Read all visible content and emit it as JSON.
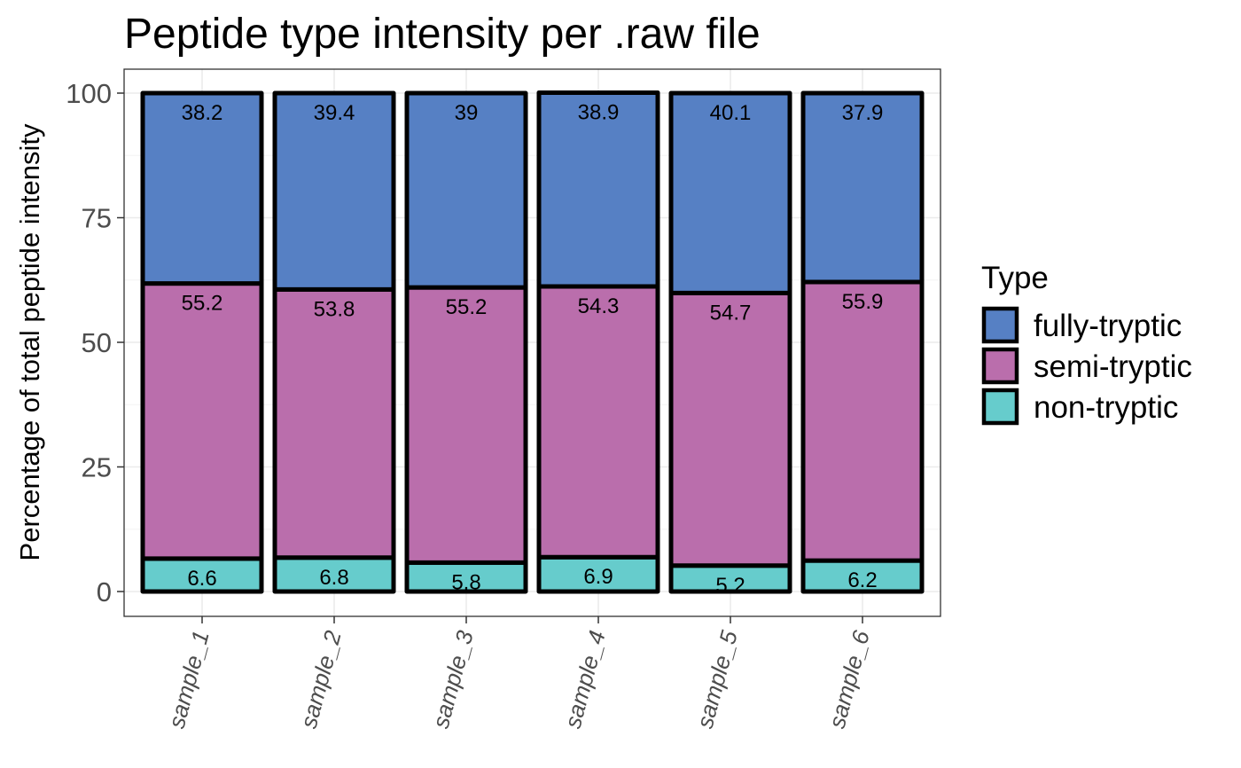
{
  "chart_data": {
    "type": "bar",
    "stacked": true,
    "title": "Peptide type intensity per .raw file",
    "ylabel": "Percentage of total peptide intensity",
    "xlabel": "",
    "ylim": [
      0,
      100
    ],
    "yticks": [
      0,
      25,
      50,
      75,
      100
    ],
    "grid": true,
    "legend_position": "right",
    "legend_title": "Type",
    "categories": [
      "sample_1",
      "sample_2",
      "sample_3",
      "sample_4",
      "sample_5",
      "sample_6"
    ],
    "series": [
      {
        "name": "non-tryptic",
        "color": "#66CCCC",
        "values": [
          6.6,
          6.8,
          5.8,
          6.9,
          5.2,
          6.2
        ]
      },
      {
        "name": "semi-tryptic",
        "color": "#BA6EAC",
        "values": [
          55.2,
          53.8,
          55.2,
          54.3,
          54.7,
          55.9
        ]
      },
      {
        "name": "fully-tryptic",
        "color": "#5680C4",
        "values": [
          38.2,
          39.4,
          39,
          38.9,
          40.1,
          37.9
        ]
      }
    ],
    "legend_order": [
      "fully-tryptic",
      "semi-tryptic",
      "non-tryptic"
    ]
  }
}
